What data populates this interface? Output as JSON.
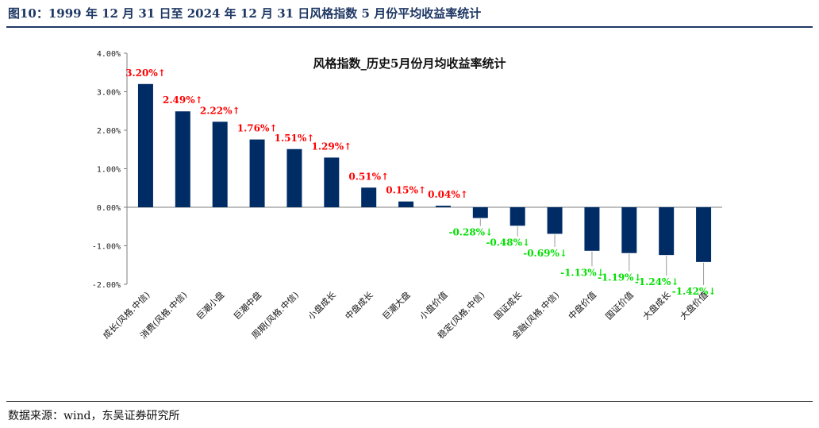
{
  "figure": {
    "title": "图10：1999 年 12 月 31 日至 2024 年 12 月 31 日风格指数 5 月份平均收益率统计",
    "source": "数据来源：wind，东吴证券研究所"
  },
  "chart_data": {
    "type": "bar",
    "title": "风格指数_历史5月份月均收益率统计",
    "xlabel": "",
    "ylabel": "",
    "ylim": [
      -2.0,
      4.0
    ],
    "yticks": [
      4.0,
      3.0,
      2.0,
      1.0,
      0.0,
      -1.0,
      -2.0
    ],
    "ytick_labels": [
      "4.00%",
      "3.00%",
      "2.00%",
      "1.00%",
      "0.00%",
      "-1.00%",
      "-2.00%"
    ],
    "grid": false,
    "legend": "none",
    "categories": [
      "成长(风格.中信)",
      "消费(风格.中信)",
      "巨潮小盘",
      "巨潮中盘",
      "周期(风格.中信)",
      "小盘成长",
      "中盘成长",
      "巨潮大盘",
      "小盘价值",
      "稳定(风格.中信)",
      "国证成长",
      "金融(风格.中信)",
      "中盘价值",
      "国证价值",
      "大盘成长",
      "大盘价值"
    ],
    "values": [
      3.2,
      2.49,
      2.22,
      1.76,
      1.51,
      1.29,
      0.51,
      0.15,
      0.04,
      -0.28,
      -0.48,
      -0.69,
      -1.13,
      -1.19,
      -1.24,
      -1.42
    ],
    "data_labels": [
      "3.20%↑",
      "2.49%↑",
      "2.22%↑",
      "1.76%↑",
      "1.51%↑",
      "1.29%↑",
      "0.51%↑",
      "0.15%↑",
      "0.04%↑",
      "-0.28%↓",
      "-0.48%↓",
      "-0.69%↓",
      "-1.13%↓",
      "-1.19%↓",
      "-1.24%↓",
      "-1.42%↓"
    ],
    "colors": {
      "bar": "#002c66",
      "positive_label": "#ff0000",
      "negative_label": "#00e000",
      "leader": "#9a9a9a"
    }
  }
}
